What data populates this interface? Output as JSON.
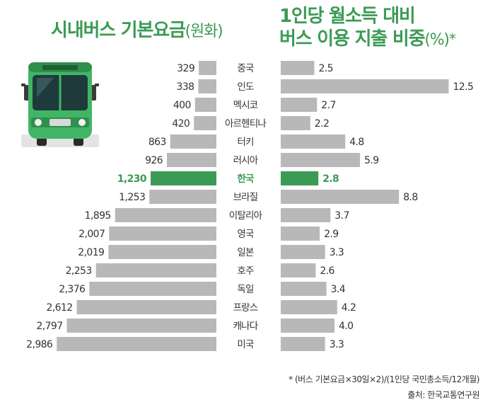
{
  "titles": {
    "left": "시내버스 기본요금",
    "left_unit": "(원화)",
    "right_line1": "1인당 월소득 대비",
    "right_line2": "버스 이용 지출 비중",
    "right_unit": "(%)",
    "right_mark": "*"
  },
  "chart_data": {
    "type": "bar",
    "categories": [
      "중국",
      "인도",
      "멕시코",
      "아르헨티나",
      "터키",
      "러시아",
      "한국",
      "브라질",
      "이탈리아",
      "영국",
      "일본",
      "호주",
      "독일",
      "프랑스",
      "캐나다",
      "미국"
    ],
    "series": [
      {
        "name": "시내버스 기본요금(원화)",
        "values": [
          329,
          338,
          400,
          420,
          863,
          926,
          1230,
          1253,
          1895,
          2007,
          2019,
          2253,
          2376,
          2612,
          2797,
          2986
        ],
        "labels": [
          "329",
          "338",
          "400",
          "420",
          "863",
          "926",
          "1,230",
          "1,253",
          "1,895",
          "2,007",
          "2,019",
          "2,253",
          "2,376",
          "2,612",
          "2,797",
          "2,986"
        ]
      },
      {
        "name": "1인당 월소득 대비 버스 이용 지출 비중(%)",
        "values": [
          2.5,
          12.5,
          2.7,
          2.2,
          4.8,
          5.9,
          2.8,
          8.8,
          3.7,
          2.9,
          3.3,
          2.6,
          3.4,
          4.2,
          4.0,
          3.3
        ],
        "labels": [
          "2.5",
          "12.5",
          "2.7",
          "2.2",
          "4.8",
          "5.9",
          "2.8",
          "8.8",
          "3.7",
          "2.9",
          "3.3",
          "2.6",
          "3.4",
          "4.2",
          "4.0",
          "3.3"
        ]
      }
    ],
    "highlight": "한국",
    "colors": {
      "bar": "#b8b8b8",
      "highlight": "#3b9b55",
      "text": "#333333"
    }
  },
  "notes": {
    "formula": "* (버스 기본요금×30일×2)/(1인당 국민총소득/12개월)",
    "source": "출처: 한국교통연구원"
  }
}
